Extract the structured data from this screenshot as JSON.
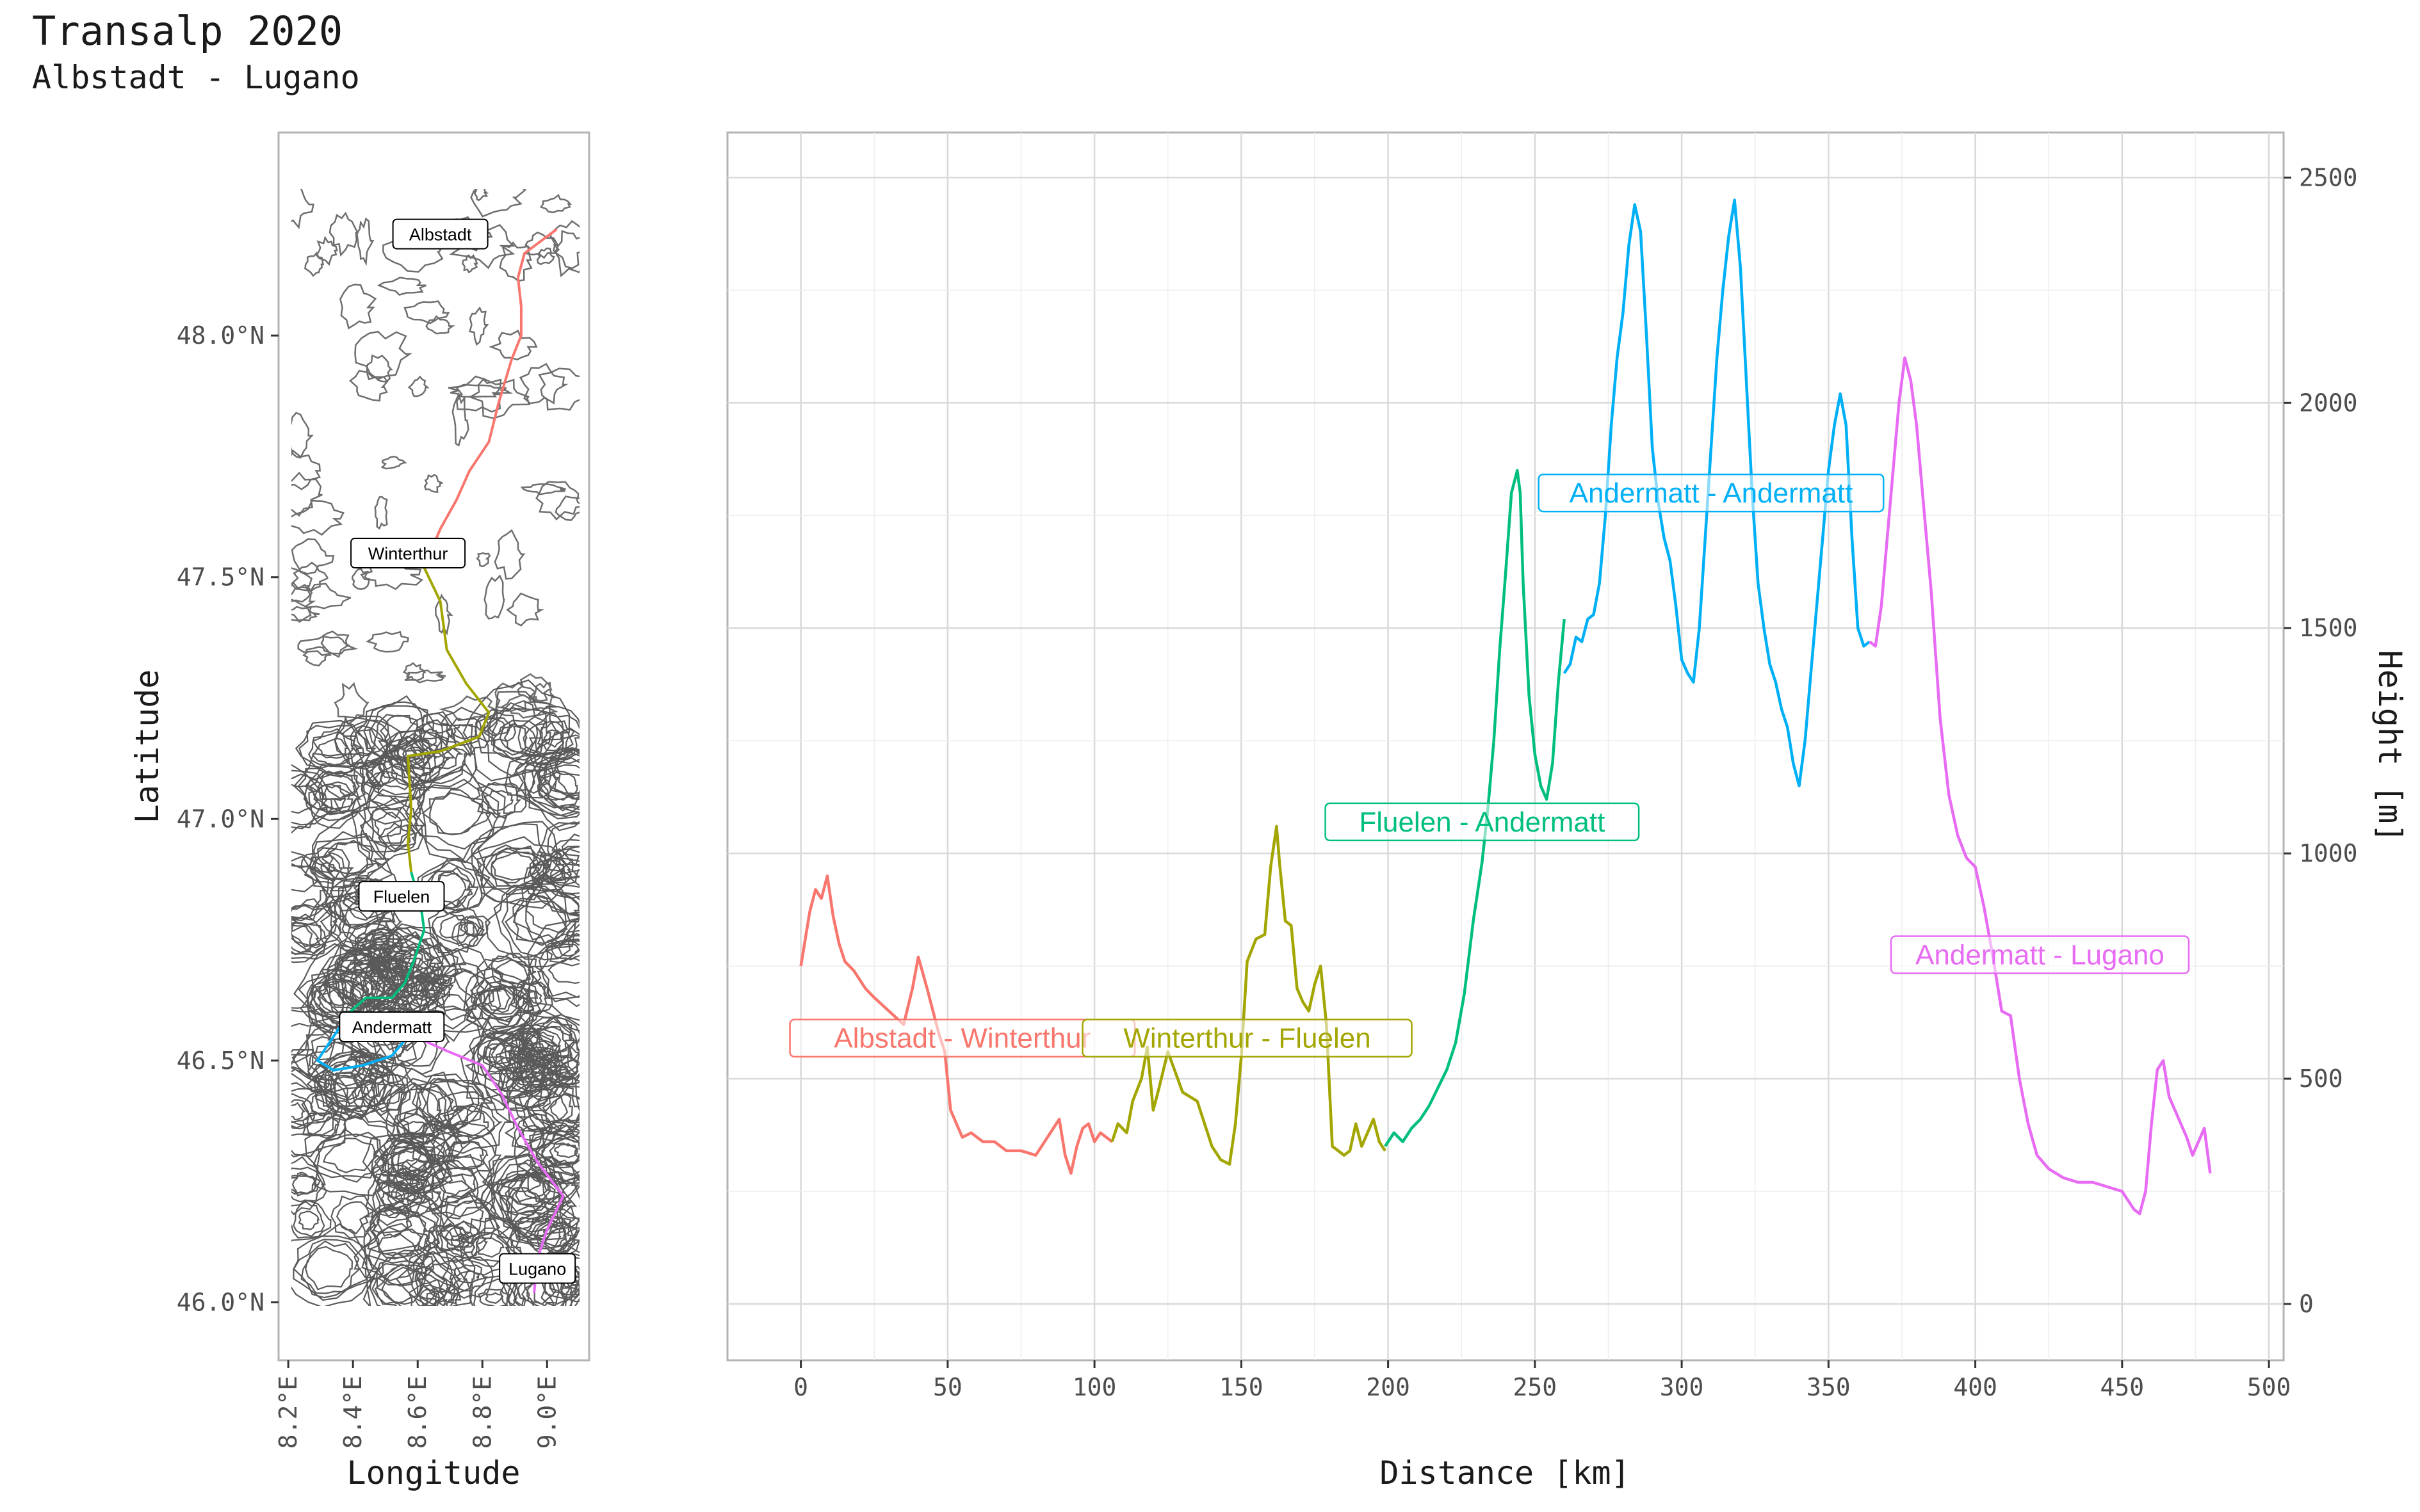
{
  "header": {
    "title": "Transalp 2020",
    "subtitle": "Albstadt - Lugano"
  },
  "chart_data": [
    {
      "type": "map",
      "xlabel": "Longitude",
      "ylabel": "Latitude",
      "xlim": [
        8.17,
        9.13
      ],
      "ylim": [
        45.88,
        48.42
      ],
      "x_ticks": [
        8.2,
        8.4,
        8.6,
        8.8,
        9.0
      ],
      "x_tick_labels": [
        "8.2°E",
        "8.4°E",
        "8.6°E",
        "8.8°E",
        "9.0°E"
      ],
      "y_ticks": [
        46.0,
        46.5,
        47.0,
        47.5,
        48.0
      ],
      "y_tick_labels": [
        "46.0°N",
        "46.5°N",
        "47.0°N",
        "47.5°N",
        "48.0°N"
      ],
      "background": "elevation contour lines",
      "cities": [
        {
          "name": "Albstadt",
          "lon": 8.67,
          "lat": 48.21
        },
        {
          "name": "Winterthur",
          "lon": 8.57,
          "lat": 47.55
        },
        {
          "name": "Fluelen",
          "lon": 8.55,
          "lat": 46.84
        },
        {
          "name": "Andermatt",
          "lon": 8.52,
          "lat": 46.57
        },
        {
          "name": "Lugano",
          "lon": 8.97,
          "lat": 46.07
        }
      ],
      "routes": [
        {
          "name": "Albstadt - Winterthur",
          "color": "#F8766D",
          "points": [
            [
              9.03,
              48.22
            ],
            [
              8.93,
              48.17
            ],
            [
              8.91,
              48.12
            ],
            [
              8.92,
              48.06
            ],
            [
              8.92,
              48.0
            ],
            [
              8.89,
              47.95
            ],
            [
              8.85,
              47.86
            ],
            [
              8.82,
              47.78
            ],
            [
              8.76,
              47.72
            ],
            [
              8.72,
              47.66
            ],
            [
              8.67,
              47.6
            ],
            [
              8.62,
              47.52
            ]
          ]
        },
        {
          "name": "Winterthur - Fluelen",
          "color": "#A3A500",
          "points": [
            [
              8.62,
              47.52
            ],
            [
              8.67,
              47.45
            ],
            [
              8.69,
              47.35
            ],
            [
              8.75,
              47.28
            ],
            [
              8.82,
              47.22
            ],
            [
              8.79,
              47.17
            ],
            [
              8.67,
              47.14
            ],
            [
              8.57,
              47.13
            ],
            [
              8.58,
              47.02
            ],
            [
              8.57,
              46.95
            ],
            [
              8.58,
              46.89
            ]
          ]
        },
        {
          "name": "Fluelen - Andermatt",
          "color": "#00BF7D",
          "points": [
            [
              8.58,
              46.89
            ],
            [
              8.61,
              46.82
            ],
            [
              8.62,
              46.77
            ],
            [
              8.59,
              46.71
            ],
            [
              8.56,
              46.66
            ],
            [
              8.52,
              46.63
            ],
            [
              8.44,
              46.63
            ],
            [
              8.39,
              46.6
            ]
          ]
        },
        {
          "name": "Andermatt - Andermatt",
          "color": "#00B0F6",
          "points": [
            [
              8.39,
              46.6
            ],
            [
              8.34,
              46.55
            ],
            [
              8.29,
              46.5
            ],
            [
              8.34,
              46.48
            ],
            [
              8.43,
              46.49
            ],
            [
              8.52,
              46.51
            ],
            [
              8.57,
              46.55
            ],
            [
              8.61,
              46.6
            ]
          ]
        },
        {
          "name": "Andermatt - Lugano",
          "color": "#E76BF3",
          "points": [
            [
              8.59,
              46.55
            ],
            [
              8.69,
              46.52
            ],
            [
              8.8,
              46.49
            ],
            [
              8.86,
              46.43
            ],
            [
              8.91,
              46.36
            ],
            [
              8.97,
              46.29
            ],
            [
              9.05,
              46.22
            ],
            [
              9.0,
              46.15
            ],
            [
              8.97,
              46.09
            ],
            [
              8.96,
              46.02
            ]
          ]
        }
      ]
    },
    {
      "type": "line",
      "xlabel": "Distance [km]",
      "ylabel": "Height [m]",
      "xlim": [
        -25,
        505
      ],
      "ylim": [
        -125,
        2600
      ],
      "x_ticks": [
        0,
        50,
        100,
        150,
        200,
        250,
        300,
        350,
        400,
        450,
        500
      ],
      "y_ticks": [
        0,
        500,
        1000,
        1500,
        2000,
        2500
      ],
      "y_axis_position": "right",
      "grid": true,
      "series": [
        {
          "name": "Albstadt - Winterthur",
          "color": "#F8766D",
          "label_at": [
            55,
            590
          ],
          "x": [
            0,
            3,
            5,
            7,
            9,
            11,
            13,
            15,
            18,
            22,
            25,
            30,
            35,
            38,
            40,
            43,
            45,
            47,
            49,
            51,
            53,
            55,
            58,
            62,
            66,
            70,
            75,
            80,
            85,
            88,
            90,
            92,
            94,
            96,
            98,
            100,
            102,
            104,
            106
          ],
          "y": [
            750,
            870,
            920,
            900,
            950,
            860,
            800,
            760,
            740,
            700,
            680,
            650,
            620,
            700,
            770,
            700,
            650,
            600,
            560,
            430,
            400,
            370,
            380,
            360,
            360,
            340,
            340,
            330,
            380,
            410,
            330,
            290,
            350,
            390,
            400,
            360,
            380,
            370,
            360
          ]
        },
        {
          "name": "Winterthur - Fluelen",
          "color": "#A3A500",
          "label_at": [
            152,
            590
          ],
          "x": [
            106,
            108,
            111,
            113,
            116,
            118,
            120,
            122,
            125,
            130,
            135,
            140,
            143,
            146,
            148,
            150,
            152,
            155,
            158,
            160,
            162,
            163,
            165,
            167,
            169,
            171,
            173,
            175,
            177,
            179,
            181,
            183,
            185,
            187,
            189,
            191,
            193,
            195,
            197,
            199
          ],
          "y": [
            360,
            400,
            380,
            450,
            500,
            570,
            430,
            480,
            560,
            470,
            450,
            350,
            320,
            310,
            400,
            550,
            760,
            810,
            820,
            970,
            1060,
            980,
            850,
            840,
            700,
            670,
            650,
            710,
            750,
            620,
            350,
            340,
            330,
            340,
            400,
            350,
            380,
            410,
            360,
            340
          ]
        },
        {
          "name": "Fluelen - Andermatt",
          "color": "#00BF7D",
          "label_at": [
            232,
            1070
          ],
          "x": [
            199,
            202,
            205,
            208,
            211,
            214,
            217,
            220,
            223,
            226,
            229,
            232,
            234,
            236,
            238,
            240,
            242,
            244,
            245,
            246,
            248,
            250,
            252,
            254,
            256,
            258,
            260
          ],
          "y": [
            350,
            380,
            360,
            390,
            410,
            440,
            480,
            520,
            580,
            690,
            850,
            980,
            1100,
            1250,
            1450,
            1620,
            1800,
            1850,
            1800,
            1600,
            1350,
            1220,
            1150,
            1120,
            1200,
            1380,
            1520
          ]
        },
        {
          "name": "Andermatt - Andermatt",
          "color": "#00B0F6",
          "label_at": [
            310,
            1800
          ],
          "x": [
            260,
            262,
            264,
            266,
            268,
            270,
            272,
            274,
            276,
            278,
            280,
            282,
            284,
            286,
            288,
            290,
            292,
            294,
            296,
            298,
            300,
            302,
            304,
            306,
            308,
            310,
            312,
            314,
            316,
            318,
            320,
            322,
            324,
            326,
            328,
            330,
            332,
            334,
            336,
            338,
            340,
            342,
            344,
            346,
            348,
            350,
            352,
            354,
            356,
            358,
            360,
            362,
            364
          ],
          "y": [
            1400,
            1420,
            1480,
            1470,
            1520,
            1530,
            1600,
            1750,
            1950,
            2100,
            2200,
            2350,
            2440,
            2380,
            2150,
            1900,
            1780,
            1700,
            1650,
            1550,
            1430,
            1400,
            1380,
            1500,
            1700,
            1900,
            2100,
            2250,
            2370,
            2450,
            2300,
            2050,
            1800,
            1600,
            1500,
            1420,
            1380,
            1320,
            1280,
            1200,
            1150,
            1250,
            1400,
            1550,
            1700,
            1850,
            1950,
            2020,
            1950,
            1700,
            1500,
            1460,
            1470
          ]
        },
        {
          "name": "Andermatt - Lugano",
          "color": "#E76BF3",
          "label_at": [
            422,
            775
          ],
          "x": [
            364,
            366,
            368,
            370,
            372,
            374,
            376,
            378,
            380,
            382,
            385,
            388,
            391,
            394,
            397,
            400,
            403,
            406,
            409,
            412,
            415,
            418,
            421,
            425,
            430,
            435,
            440,
            445,
            450,
            452,
            454,
            456,
            458,
            460,
            462,
            464,
            466,
            468,
            470,
            472,
            474,
            476,
            478,
            480
          ],
          "y": [
            1470,
            1460,
            1550,
            1700,
            1850,
            2000,
            2100,
            2050,
            1950,
            1800,
            1580,
            1300,
            1130,
            1040,
            990,
            970,
            880,
            770,
            650,
            640,
            500,
            400,
            330,
            300,
            280,
            270,
            270,
            260,
            250,
            230,
            210,
            200,
            250,
            400,
            520,
            540,
            460,
            430,
            400,
            370,
            330,
            360,
            390,
            290
          ]
        }
      ]
    }
  ]
}
